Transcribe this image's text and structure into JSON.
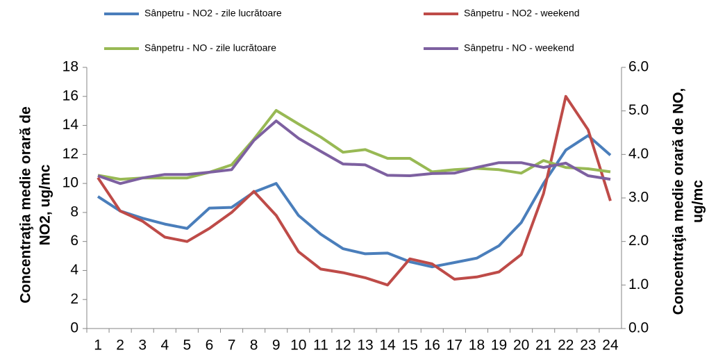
{
  "chart_data": {
    "type": "line",
    "categories": [
      "1",
      "2",
      "3",
      "4",
      "5",
      "6",
      "7",
      "8",
      "9",
      "10",
      "11",
      "12",
      "13",
      "14",
      "15",
      "16",
      "17",
      "18",
      "19",
      "20",
      "21",
      "22",
      "23",
      "24"
    ],
    "ylabel": [
      "Concentraţia medie orară de",
      "NO2, ug/mc"
    ],
    "y2label": [
      "Concentraţia medie orară de NO,",
      "ug/mc"
    ],
    "ylim": [
      0,
      18
    ],
    "yticks": [
      0,
      2,
      4,
      6,
      8,
      10,
      12,
      14,
      16,
      18
    ],
    "y2lim": [
      0,
      6
    ],
    "y2ticks": [
      {
        "value": 0,
        "label": "0.0"
      },
      {
        "value": 1,
        "label": "1.0"
      },
      {
        "value": 2,
        "label": "2.0"
      },
      {
        "value": 3,
        "label": "3.0"
      },
      {
        "value": 4,
        "label": "4.0"
      },
      {
        "value": 5,
        "label": "5.0"
      },
      {
        "value": 6,
        "label": "6.0"
      }
    ],
    "series": [
      {
        "name": "Sânpetru - NO2 - zile lucrătoare",
        "color": "#4a7ebb",
        "values": [
          9.1,
          8.1,
          7.6,
          7.2,
          6.9,
          8.3,
          8.35,
          9.4,
          10.0,
          7.8,
          6.5,
          5.5,
          5.15,
          5.2,
          4.6,
          4.25,
          4.55,
          4.85,
          5.7,
          7.3,
          10.0,
          12.3,
          13.3,
          11.95
        ]
      },
      {
        "name": "Sânpetru - NO2 - weekend",
        "color": "#be4b48",
        "values": [
          10.4,
          8.1,
          7.4,
          6.3,
          6.0,
          6.9,
          8.0,
          9.45,
          7.8,
          5.3,
          4.1,
          3.85,
          3.5,
          3.0,
          4.8,
          4.45,
          3.4,
          3.55,
          3.9,
          5.1,
          9.3,
          16.0,
          13.7,
          8.8
        ]
      },
      {
        "name": "Sânpetru - NO - zile lucrătoare",
        "color": "#98b954",
        "axis": "y2",
        "values": [
          3.52,
          3.43,
          3.46,
          3.46,
          3.46,
          3.59,
          3.76,
          4.35,
          5.01,
          4.7,
          4.4,
          4.05,
          4.11,
          3.91,
          3.91,
          3.6,
          3.65,
          3.68,
          3.65,
          3.57,
          3.86,
          3.7,
          3.67,
          3.6
        ]
      },
      {
        "name": "Sânpetru - NO - weekend",
        "color": "#7d60a0",
        "axis": "y2",
        "values": [
          3.51,
          3.33,
          3.46,
          3.54,
          3.54,
          3.59,
          3.65,
          4.32,
          4.77,
          4.37,
          4.07,
          3.78,
          3.76,
          3.52,
          3.51,
          3.56,
          3.57,
          3.7,
          3.81,
          3.81,
          3.7,
          3.8,
          3.51,
          3.43
        ]
      }
    ]
  }
}
